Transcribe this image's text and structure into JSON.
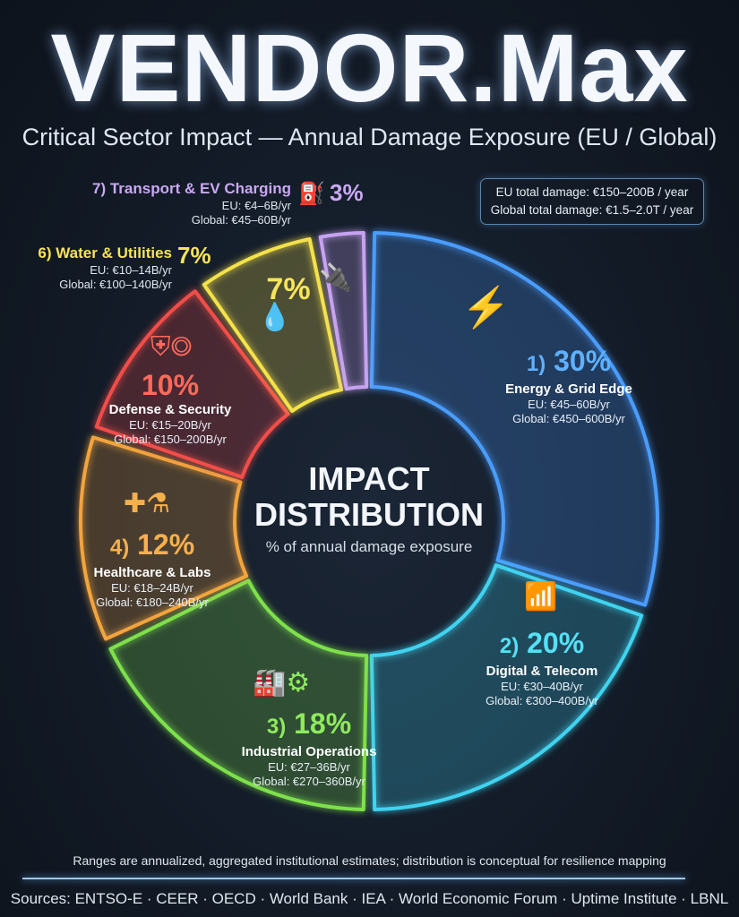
{
  "header": {
    "title": "VENDOR.Max",
    "subtitle": "Critical Sector Impact — Annual Damage Exposure (EU / Global)"
  },
  "totals": {
    "eu": "EU total damage: €150–200B / year",
    "global": "Global total damage: €1.5–2.0T / year"
  },
  "center": {
    "line1": "IMPACT",
    "line2": "DISTRIBUTION",
    "caption": "% of annual damage exposure"
  },
  "chart_data": {
    "type": "pie",
    "donut": true,
    "title": "IMPACT DISTRIBUTION",
    "subtitle": "% of annual damage exposure",
    "categories": [
      "Energy & Grid Edge",
      "Digital & Telecom",
      "Industrial Operations",
      "Healthcare & Labs",
      "Defense & Security",
      "Water & Utilities",
      "Transport & EV Charging"
    ],
    "values": [
      30,
      20,
      18,
      12,
      10,
      7,
      3
    ],
    "segments": [
      {
        "rank": "1)",
        "pct": "30%",
        "name": "Energy & Grid Edge",
        "eu": "EU: €45–60B/yr",
        "global": "Global: €450–600B/yr",
        "color": "#4a9dff",
        "icon": "power-pylon-icon"
      },
      {
        "rank": "2)",
        "pct": "20%",
        "name": "Digital & Telecom",
        "eu": "EU: €30–40B/yr",
        "global": "Global: €300–400B/yr",
        "color": "#3fd3f0",
        "icon": "cell-tower-server-icon"
      },
      {
        "rank": "3)",
        "pct": "18%",
        "name": "Industrial Operations",
        "eu": "EU: €27–36B/yr",
        "global": "Global: €270–360B/yr",
        "color": "#7ee04c",
        "icon": "factory-gear-icon"
      },
      {
        "rank": "4)",
        "pct": "12%",
        "name": "Healthcare & Labs",
        "eu": "EU: €18–24B/yr",
        "global": "Global: €180–240B/yr",
        "color": "#f2a43e",
        "icon": "medical-flask-icon"
      },
      {
        "rank": "",
        "pct": "10%",
        "name": "Defense & Security",
        "eu": "EU: €15–20B/yr",
        "global": "Global: €150–200B/yr",
        "color": "#f24e4a",
        "icon": "shield-radar-icon"
      },
      {
        "rank": "6)",
        "pct": "7%",
        "name": "Water & Utilities",
        "eu": "EU: €10–14B/yr",
        "global": "Global: €100–140B/yr",
        "color": "#f4e24a",
        "icon": "water-valve-icon"
      },
      {
        "rank": "7)",
        "pct": "3%",
        "name": "Transport & EV Charging",
        "eu": "EU: €4–6B/yr",
        "global": "Global: €45–60B/yr",
        "color": "#c6a2f0",
        "icon": "ev-charger-icon"
      }
    ]
  },
  "footer": {
    "note": "Ranges are annualized, aggregated institutional estimates; distribution is conceptual for resilience mapping",
    "sources": "Sources: ENTSO-E · CEER · OECD · World Bank · IEA · World Economic Forum · Uptime Institute · LBNL"
  }
}
